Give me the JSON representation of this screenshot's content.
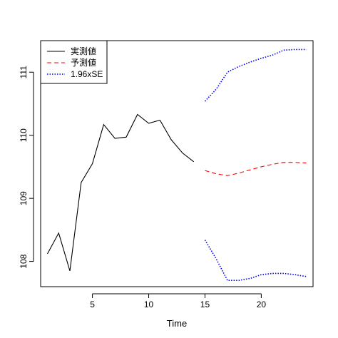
{
  "chart_data": {
    "type": "line",
    "title": "",
    "xlabel": "Time",
    "ylabel": "",
    "xlim": [
      0.4,
      24.6
    ],
    "ylim": [
      107.6,
      111.5
    ],
    "xticks": [
      5,
      10,
      15,
      20
    ],
    "yticks": [
      108,
      109,
      110,
      111
    ],
    "grid": false,
    "legend_position": "top-left",
    "series": [
      {
        "name": "実測値",
        "color": "#000000",
        "dash": "solid",
        "x": [
          1,
          2,
          3,
          4,
          5,
          6,
          7,
          8,
          9,
          10,
          11,
          12,
          13,
          14
        ],
        "values": [
          108.12,
          108.45,
          107.85,
          109.25,
          109.55,
          110.17,
          109.95,
          109.97,
          110.33,
          110.19,
          110.24,
          109.93,
          109.72,
          109.58
        ]
      },
      {
        "name": "予測値",
        "color": "#ff0000",
        "dash": "dashed",
        "x": [
          15,
          16,
          17,
          18,
          19,
          20,
          21,
          22,
          23,
          24
        ],
        "values": [
          109.44,
          109.39,
          109.36,
          109.4,
          109.45,
          109.5,
          109.54,
          109.57,
          109.57,
          109.56
        ]
      },
      {
        "name": "1.96xSE",
        "color": "#0000ff",
        "dash": "dotted",
        "x": [
          15,
          16,
          17,
          18,
          19,
          20,
          21,
          22,
          23,
          24
        ],
        "values": [
          110.54,
          110.73,
          111.0,
          111.09,
          111.16,
          111.22,
          111.27,
          111.35,
          111.36,
          111.36
        ]
      },
      {
        "name": "",
        "color": "#0000ff",
        "dash": "dotted",
        "x": [
          15,
          16,
          17,
          18,
          19,
          20,
          21,
          22,
          23,
          24
        ],
        "values": [
          108.34,
          108.04,
          107.7,
          107.7,
          107.73,
          107.79,
          107.81,
          107.81,
          107.79,
          107.76
        ]
      }
    ]
  }
}
